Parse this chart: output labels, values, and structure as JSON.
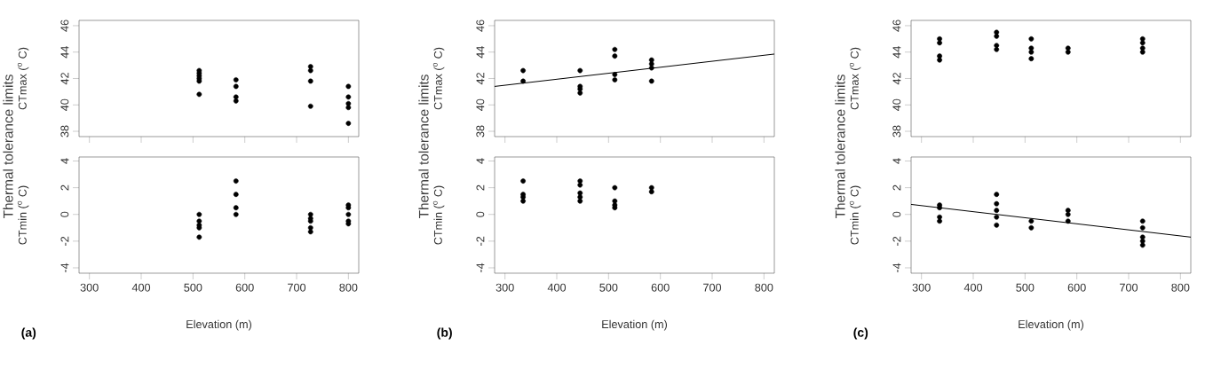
{
  "chart_data": [
    {
      "type": "scatter",
      "ylabel": "CTmax ($^{o}$ C)",
      "annotations": [
        "Thermal tolerance limits"
      ],
      "xlim": [
        280,
        820
      ],
      "ylim": [
        37.6,
        46.4
      ],
      "xticks": [
        300,
        400,
        500,
        600,
        700,
        800
      ],
      "yticks": [
        38,
        40,
        42,
        44,
        46
      ],
      "tick_labels": "y",
      "series": [
        {
          "marker": "circle",
          "color": "#000000",
          "x": [
            512,
            512,
            512,
            512,
            512,
            512,
            583,
            583,
            583,
            583,
            727,
            727,
            727,
            727,
            800,
            800,
            800,
            800,
            800
          ],
          "values": [
            42.6,
            42.4,
            42.2,
            42.0,
            41.8,
            40.8,
            41.9,
            41.4,
            40.6,
            40.3,
            42.9,
            42.6,
            41.8,
            39.9,
            41.4,
            40.6,
            40.1,
            39.8,
            38.6
          ]
        }
      ]
    },
    {
      "type": "scatter",
      "ylabel": "CTmin ($^{o}$ C)",
      "xlabel": "Elevation (m)",
      "annotations": [
        "(a)"
      ],
      "xlim": [
        280,
        820
      ],
      "ylim": [
        -4.4,
        4.3
      ],
      "xticks": [
        300,
        400,
        500,
        600,
        700,
        800
      ],
      "yticks": [
        -4,
        -2,
        0,
        2,
        4
      ],
      "series": [
        {
          "marker": "circle",
          "color": "#000000",
          "x": [
            512,
            512,
            512,
            512,
            512,
            583,
            583,
            583,
            583,
            727,
            727,
            727,
            727,
            727,
            800,
            800,
            800,
            800,
            800
          ],
          "values": [
            0,
            -0.5,
            -0.8,
            -1.0,
            -1.7,
            2.5,
            1.5,
            0.5,
            0,
            0,
            -0.3,
            -0.5,
            -1.0,
            -1.3,
            0.7,
            0.5,
            0,
            -0.5,
            -0.7
          ]
        }
      ]
    },
    {
      "type": "scatter",
      "ylabel": "CTmax ($^{o}$ C)",
      "annotations": [
        "Thermal tolerance limits"
      ],
      "xlim": [
        280,
        820
      ],
      "ylim": [
        37.6,
        46.4
      ],
      "xticks": [
        300,
        400,
        500,
        600,
        700,
        800
      ],
      "yticks": [
        38,
        40,
        42,
        44,
        46
      ],
      "tick_labels": "y",
      "series": [
        {
          "marker": "circle",
          "color": "#000000",
          "x": [
            335,
            335,
            445,
            445,
            445,
            445,
            512,
            512,
            512,
            512,
            583,
            583,
            583,
            583
          ],
          "values": [
            42.6,
            41.8,
            42.6,
            41.4,
            41.2,
            40.9,
            44.2,
            43.7,
            42.3,
            41.9,
            43.4,
            43.1,
            42.8,
            41.8
          ]
        },
        {
          "type": "line",
          "marker": "none",
          "color": "#000000",
          "x": [
            280,
            820
          ],
          "values": [
            41.4,
            43.85
          ]
        }
      ]
    },
    {
      "type": "scatter",
      "ylabel": "CTmin ($^{o}$ C)",
      "xlabel": "Elevation (m)",
      "annotations": [
        "(b)"
      ],
      "xlim": [
        280,
        820
      ],
      "ylim": [
        -4.4,
        4.3
      ],
      "xticks": [
        300,
        400,
        500,
        600,
        700,
        800
      ],
      "yticks": [
        -4,
        -2,
        0,
        2,
        4
      ],
      "series": [
        {
          "marker": "circle",
          "color": "#000000",
          "x": [
            335,
            335,
            335,
            335,
            445,
            445,
            445,
            445,
            445,
            512,
            512,
            512,
            512,
            583,
            583
          ],
          "values": [
            2.5,
            1.5,
            1.3,
            1.0,
            2.5,
            2.2,
            1.6,
            1.3,
            1.0,
            2.0,
            1.0,
            0.7,
            0.5,
            2.0,
            1.7
          ]
        }
      ]
    },
    {
      "type": "scatter",
      "ylabel": "CTmax ($^{o}$ C)",
      "annotations": [
        "Thermal tolerance limits"
      ],
      "xlim": [
        280,
        820
      ],
      "ylim": [
        37.6,
        46.4
      ],
      "xticks": [
        300,
        400,
        500,
        600,
        700,
        800
      ],
      "yticks": [
        38,
        40,
        42,
        44,
        46
      ],
      "tick_labels": "y",
      "series": [
        {
          "marker": "circle",
          "color": "#000000",
          "x": [
            335,
            335,
            335,
            335,
            445,
            445,
            445,
            445,
            512,
            512,
            512,
            512,
            583,
            583,
            727,
            727,
            727,
            727
          ],
          "values": [
            45.0,
            44.7,
            43.7,
            43.4,
            45.5,
            45.2,
            44.5,
            44.2,
            45.0,
            44.3,
            44.0,
            43.5,
            44.3,
            44.0,
            45.0,
            44.7,
            44.3,
            44.0
          ]
        }
      ]
    },
    {
      "type": "scatter",
      "ylabel": "CTmin ($^{o}$ C)",
      "xlabel": "Elevation (m)",
      "annotations": [
        "(c)"
      ],
      "xlim": [
        280,
        820
      ],
      "ylim": [
        -4.4,
        4.3
      ],
      "xticks": [
        300,
        400,
        500,
        600,
        700,
        800
      ],
      "yticks": [
        -4,
        -2,
        0,
        2,
        4
      ],
      "series": [
        {
          "marker": "circle",
          "color": "#000000",
          "x": [
            335,
            335,
            335,
            335,
            445,
            445,
            445,
            445,
            445,
            512,
            512,
            583,
            583,
            583,
            727,
            727,
            727,
            727,
            727
          ],
          "values": [
            0.7,
            0.5,
            -0.2,
            -0.5,
            1.5,
            0.8,
            0.3,
            -0.2,
            -0.8,
            -0.5,
            -1.0,
            0.3,
            0,
            -0.5,
            -0.5,
            -1.0,
            -1.7,
            -2.0,
            -2.3
          ]
        },
        {
          "type": "line",
          "marker": "none",
          "color": "#000000",
          "x": [
            280,
            820
          ],
          "values": [
            0.75,
            -1.7
          ]
        }
      ]
    }
  ]
}
